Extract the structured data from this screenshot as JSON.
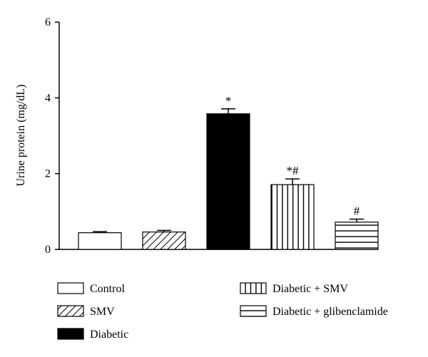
{
  "chart_data": {
    "type": "bar",
    "categories": [
      "Control",
      "SMV",
      "Diabetic",
      "Diabetic + SMV",
      "Diabetic + glibenclamide"
    ],
    "values": [
      0.44,
      0.46,
      3.58,
      1.71,
      0.72
    ],
    "errors": [
      0.03,
      0.04,
      0.13,
      0.15,
      0.08
    ],
    "annotations": [
      "",
      "",
      "*",
      "*#",
      "#"
    ],
    "patterns": [
      "empty",
      "diagonal",
      "solid",
      "vertical",
      "horizontal"
    ],
    "ylabel": "Urine protein (mg/dL)",
    "xlabel": "",
    "title": "",
    "ylim": [
      0,
      6
    ],
    "yticks": [
      0,
      2,
      4,
      6
    ],
    "grid": false,
    "legend_position": "bottom",
    "colors": {
      "ink": "#000000",
      "fill": "#ffffff"
    }
  }
}
